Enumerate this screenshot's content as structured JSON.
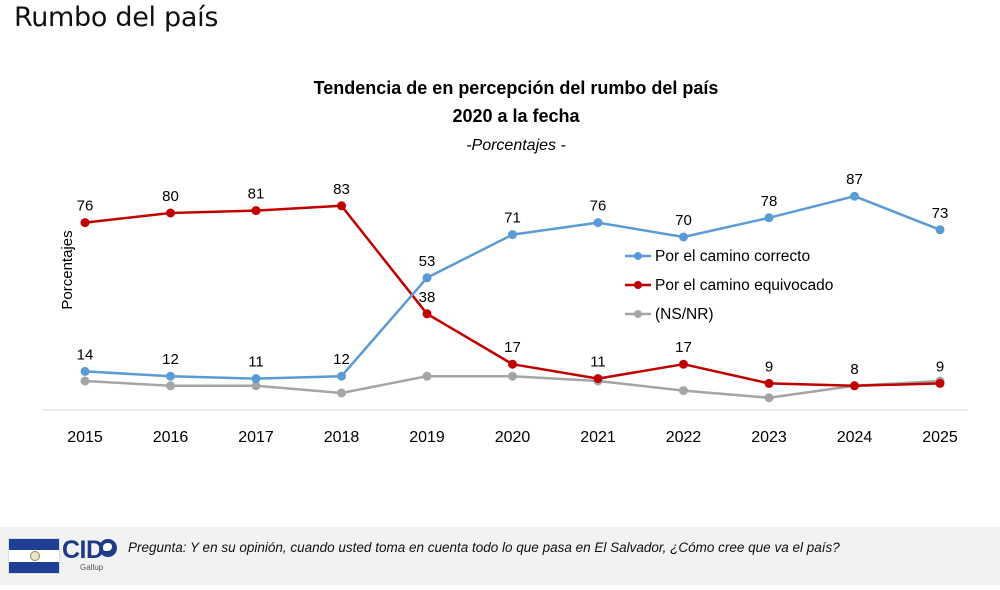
{
  "page": {
    "heading": "Rumbo del país"
  },
  "chart_data": {
    "type": "line",
    "title": "Tendencia de en percepción del rumbo del país",
    "title_line2": "2020 a la fecha",
    "subtitle": "-Porcentajes -",
    "ylabel": "Porcentajes",
    "xlabel": "",
    "categories": [
      "2015",
      "2016",
      "2017",
      "2018",
      "2019",
      "2020",
      "2021",
      "2022",
      "2023",
      "2024",
      "2025"
    ],
    "ylim": [
      0,
      100
    ],
    "grid": false,
    "legend_position": "right",
    "series": [
      {
        "name": "Por el camino correcto",
        "color": "#5b9bd5",
        "values": [
          14,
          12,
          11,
          12,
          53,
          71,
          76,
          70,
          78,
          87,
          73
        ],
        "labels": [
          "14",
          "12",
          "11",
          "12",
          "53",
          "71",
          "76",
          "70",
          "78",
          "87",
          "73"
        ],
        "label_position": "above"
      },
      {
        "name": "Por el camino equivocado",
        "color": "#c00000",
        "values": [
          76,
          80,
          81,
          83,
          38,
          17,
          11,
          17,
          9,
          8,
          9
        ],
        "labels": [
          "76",
          "80",
          "81",
          "83",
          "38",
          "17",
          "11",
          "17",
          "9",
          "8",
          "9"
        ],
        "label_position": "above"
      },
      {
        "name": "(NS/NR)",
        "color": "#a5a5a5",
        "values": [
          10,
          8,
          8,
          5,
          12,
          12,
          10,
          6,
          3,
          8,
          10
        ],
        "labels": [],
        "label_position": "none"
      }
    ]
  },
  "footer": {
    "logo_text": "CID",
    "logo_sub": "Gallup",
    "question": "Pregunta: Y en su opinión, cuando usted toma en cuenta todo lo que pasa en El Salvador, ¿Cómo cree que va el país?"
  }
}
